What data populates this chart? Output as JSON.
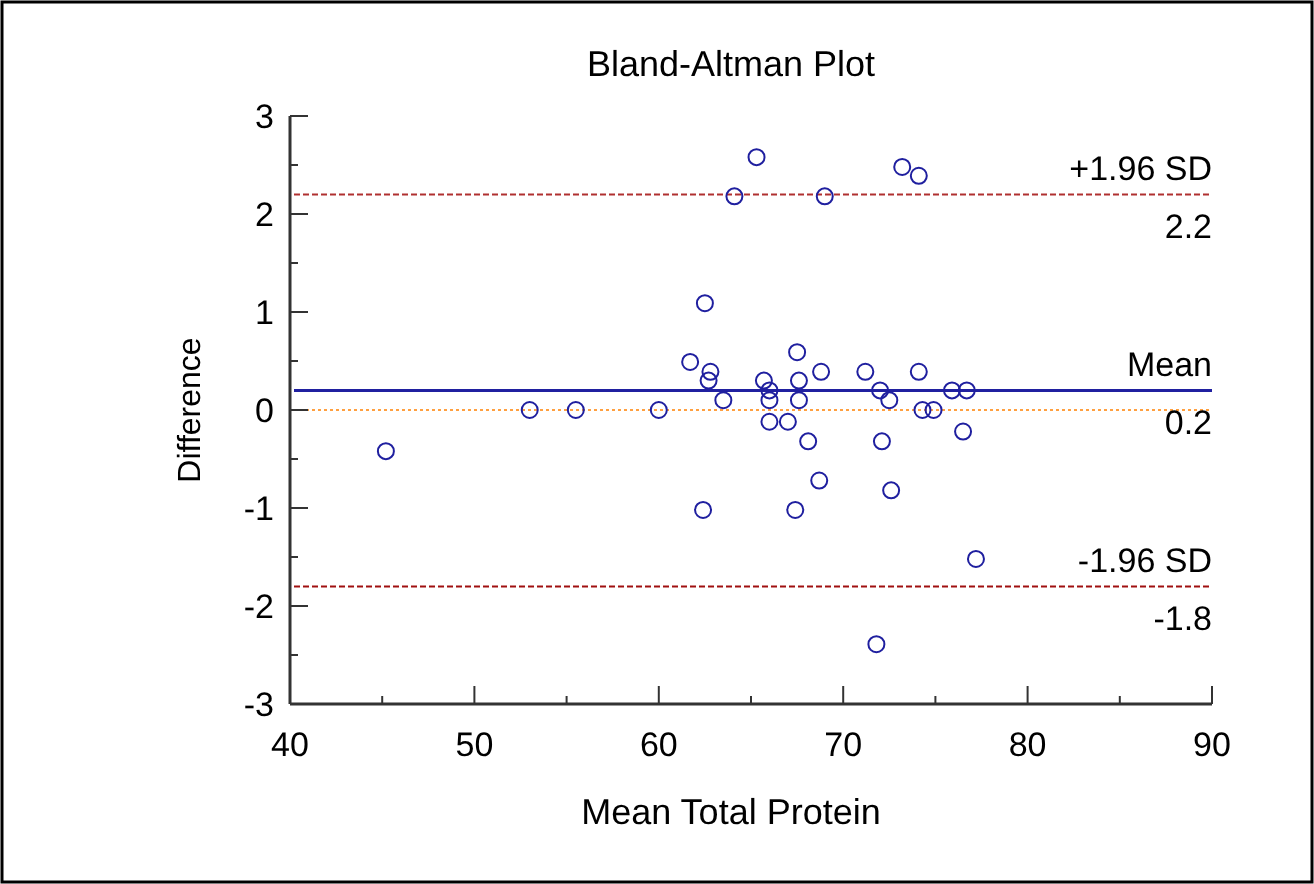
{
  "chart_data": {
    "type": "scatter",
    "title": "Bland-Altman Plot",
    "xlabel": "Mean Total Protein",
    "ylabel": "Difference",
    "marker": "circle",
    "grid": false,
    "annotations": [
      {
        "text": "2.2",
        "y": 2.2
      },
      {
        "text": "0.2",
        "y": 0.2
      },
      {
        "text": "-1.8",
        "y": -1.8
      }
    ],
    "xlim": [
      40,
      90
    ],
    "xticks": [
      40,
      {
        "value": 45,
        "label": null
      },
      50,
      {
        "value": 55,
        "label": null
      },
      60,
      {
        "value": 65,
        "label": null
      },
      70,
      {
        "value": 75,
        "label": null
      },
      80,
      {
        "value": 85,
        "label": null
      },
      90
    ],
    "ylim": [
      -3,
      3
    ],
    "yticks": [
      -3,
      {
        "value": -2.5,
        "label": null
      },
      -2,
      {
        "value": -1.5,
        "label": null
      },
      -1,
      {
        "value": -0.5,
        "label": null
      },
      0,
      {
        "value": 0.5,
        "label": null
      },
      1,
      {
        "value": 1.5,
        "label": null
      },
      2,
      {
        "value": 2.5,
        "label": null
      },
      3
    ],
    "series": [
      {
        "color": "#1f1f9f",
        "x": [
          45.2,
          53.0,
          55.5,
          60.0,
          61.7,
          62.5,
          62.8,
          62.7,
          63.5,
          65.3,
          64.1,
          62.4,
          65.7,
          66.0,
          66.0,
          66.0,
          67.0,
          67.5,
          67.6,
          67.6,
          67.4,
          73.2,
          74.1,
          69.0,
          68.8,
          68.1,
          68.7,
          71.2,
          72.0,
          72.5,
          72.1,
          72.6,
          74.1,
          74.3,
          74.9,
          75.9,
          76.7,
          76.5,
          77.2,
          71.8
        ],
        "values": [
          -0.42,
          0,
          0,
          0,
          0.49,
          1.09,
          0.39,
          0.3,
          0.1,
          2.58,
          2.18,
          -1.02,
          0.3,
          0.2,
          0.1,
          -0.12,
          -0.12,
          0.59,
          0.3,
          0.1,
          -1.02,
          2.48,
          2.39,
          2.18,
          0.39,
          -0.32,
          -0.72,
          0.39,
          0.2,
          0.1,
          -0.32,
          -0.82,
          0.39,
          0,
          0,
          0.2,
          0.2,
          -0.22,
          -1.52,
          -2.39
        ]
      }
    ],
    "ref_lines": [
      {
        "axis": "y",
        "value": 2.2,
        "label": "+1.96 SD",
        "color": "#b03030",
        "line_style": "dashed"
      },
      {
        "axis": "y",
        "value": 0.2,
        "label": "Mean",
        "color": "#2020a0",
        "line_style": "solid"
      },
      {
        "axis": "y",
        "value": 0,
        "label": null,
        "color": "#ffa040",
        "line_style": "dotted"
      },
      {
        "axis": "y",
        "value": -1.8,
        "label": "-1.96 SD",
        "color": "#a01010",
        "line_style": "dashed"
      }
    ]
  }
}
